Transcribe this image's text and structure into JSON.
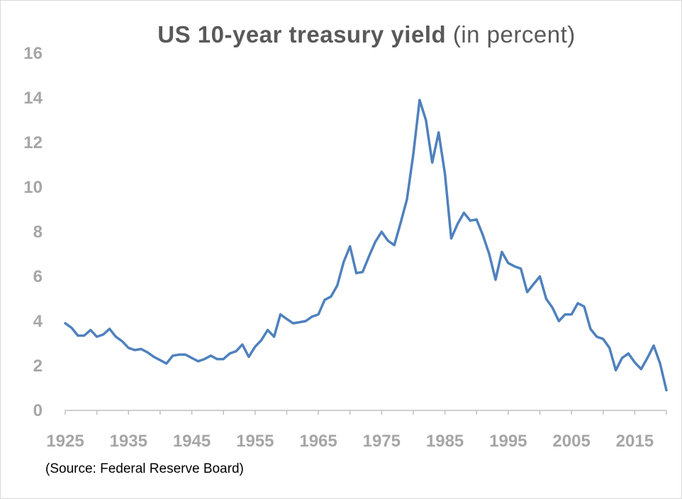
{
  "colors": {
    "line": "#4f81bd",
    "axis": "#bfbfbf",
    "tick_text": "#a6a6a6",
    "title": "#595959"
  },
  "chart_data": {
    "type": "line",
    "title": "US 10-year treasury yield",
    "subtitle": "(in percent)",
    "source": "(Source: Federal Reserve Board)",
    "xlabel": "",
    "ylabel": "",
    "ylim": [
      0,
      16
    ],
    "xlim": [
      1925,
      2020
    ],
    "grid": false,
    "yticks": [
      0,
      2,
      4,
      6,
      8,
      10,
      12,
      14,
      16
    ],
    "xticks": [
      1925,
      1935,
      1945,
      1955,
      1965,
      1975,
      1985,
      1995,
      2005,
      2015
    ],
    "series": [
      {
        "name": "US 10-year treasury yield",
        "x": [
          1925,
          1926,
          1927,
          1928,
          1929,
          1930,
          1931,
          1932,
          1933,
          1934,
          1935,
          1936,
          1937,
          1938,
          1939,
          1940,
          1941,
          1942,
          1943,
          1944,
          1945,
          1946,
          1947,
          1948,
          1949,
          1950,
          1951,
          1952,
          1953,
          1954,
          1955,
          1956,
          1957,
          1958,
          1959,
          1960,
          1961,
          1962,
          1963,
          1964,
          1965,
          1966,
          1967,
          1968,
          1969,
          1970,
          1971,
          1972,
          1973,
          1974,
          1975,
          1976,
          1977,
          1978,
          1979,
          1980,
          1981,
          1982,
          1983,
          1984,
          1985,
          1986,
          1987,
          1988,
          1989,
          1990,
          1991,
          1992,
          1993,
          1994,
          1995,
          1996,
          1997,
          1998,
          1999,
          2000,
          2001,
          2002,
          2003,
          2004,
          2005,
          2006,
          2007,
          2008,
          2009,
          2010,
          2011,
          2012,
          2013,
          2014,
          2015,
          2016,
          2017,
          2018,
          2019,
          2020
        ],
        "values": [
          3.9,
          3.7,
          3.35,
          3.35,
          3.6,
          3.3,
          3.4,
          3.65,
          3.3,
          3.1,
          2.8,
          2.7,
          2.75,
          2.6,
          2.4,
          2.25,
          2.1,
          2.45,
          2.5,
          2.5,
          2.35,
          2.2,
          2.3,
          2.45,
          2.3,
          2.3,
          2.55,
          2.65,
          2.95,
          2.4,
          2.85,
          3.15,
          3.6,
          3.3,
          4.3,
          4.1,
          3.9,
          3.95,
          4.0,
          4.2,
          4.3,
          4.95,
          5.1,
          5.6,
          6.65,
          7.35,
          6.15,
          6.2,
          6.9,
          7.55,
          8.0,
          7.6,
          7.4,
          8.4,
          9.45,
          11.45,
          13.9,
          13.0,
          11.1,
          12.45,
          10.6,
          7.7,
          8.35,
          8.85,
          8.5,
          8.55,
          7.85,
          7.0,
          5.85,
          7.1,
          6.6,
          6.45,
          6.35,
          5.3,
          5.65,
          6.0,
          5.0,
          4.6,
          4.0,
          4.3,
          4.3,
          4.8,
          4.65,
          3.65,
          3.3,
          3.2,
          2.8,
          1.8,
          2.35,
          2.55,
          2.15,
          1.85,
          2.35,
          2.9,
          2.1,
          0.9
        ]
      }
    ]
  }
}
